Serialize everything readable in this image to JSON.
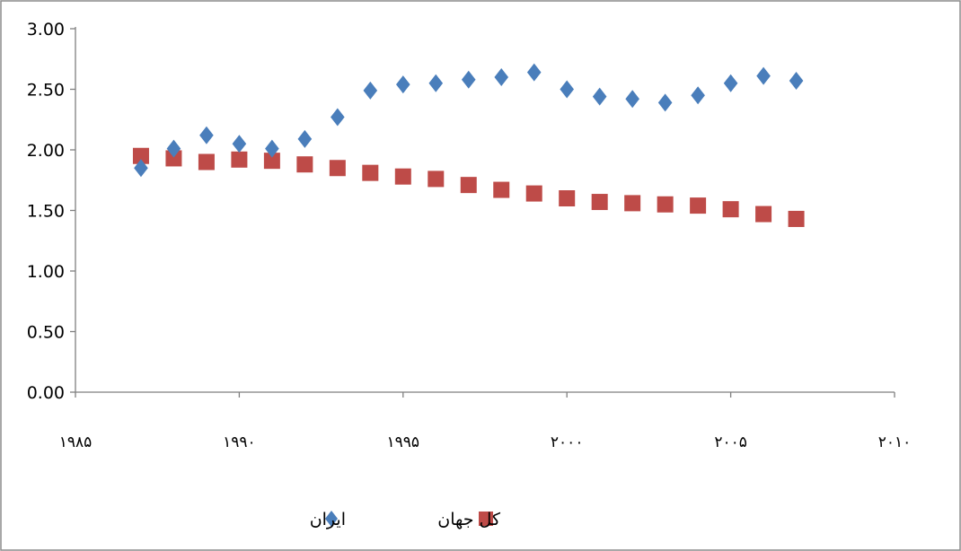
{
  "chart_data": {
    "type": "scatter",
    "title": "",
    "xlabel": "",
    "ylabel": "",
    "xlim": [
      1985,
      2010
    ],
    "ylim": [
      0,
      3
    ],
    "x_ticks": [
      1985,
      1990,
      1995,
      2000,
      2005,
      2010
    ],
    "x_tick_labels": [
      "۱۹۸۵",
      "۱۹۹۰",
      "۱۹۹۵",
      "۲۰۰۰",
      "۲۰۰۵",
      "۲۰۱۰"
    ],
    "y_ticks": [
      0,
      0.5,
      1,
      1.5,
      2,
      2.5,
      3
    ],
    "y_tick_labels": [
      "0.00",
      "0.50",
      "1.00",
      "1.50",
      "2.00",
      "2.50",
      "3.00"
    ],
    "grid": false,
    "legend_position": "bottom",
    "series": [
      {
        "name": "ایران",
        "marker": "diamond",
        "color": "#4a7ebb",
        "points": [
          [
            1987,
            1.85
          ],
          [
            1988,
            2.01
          ],
          [
            1989,
            2.12
          ],
          [
            1990,
            2.05
          ],
          [
            1991,
            2.01
          ],
          [
            1992,
            2.09
          ],
          [
            1993,
            2.27
          ],
          [
            1994,
            2.49
          ],
          [
            1995,
            2.54
          ],
          [
            1996,
            2.55
          ],
          [
            1997,
            2.58
          ],
          [
            1998,
            2.6
          ],
          [
            1999,
            2.64
          ],
          [
            2000,
            2.5
          ],
          [
            2001,
            2.44
          ],
          [
            2002,
            2.42
          ],
          [
            2003,
            2.39
          ],
          [
            2004,
            2.45
          ],
          [
            2005,
            2.55
          ],
          [
            2006,
            2.61
          ],
          [
            2007,
            2.57
          ]
        ]
      },
      {
        "name": "کل جهان",
        "marker": "square",
        "color": "#be4b48",
        "points": [
          [
            1987,
            1.95
          ],
          [
            1988,
            1.93
          ],
          [
            1989,
            1.9
          ],
          [
            1990,
            1.92
          ],
          [
            1991,
            1.91
          ],
          [
            1992,
            1.88
          ],
          [
            1993,
            1.85
          ],
          [
            1994,
            1.81
          ],
          [
            1995,
            1.78
          ],
          [
            1996,
            1.76
          ],
          [
            1997,
            1.71
          ],
          [
            1998,
            1.67
          ],
          [
            1999,
            1.64
          ],
          [
            2000,
            1.6
          ],
          [
            2001,
            1.57
          ],
          [
            2002,
            1.56
          ],
          [
            2003,
            1.55
          ],
          [
            2004,
            1.54
          ],
          [
            2005,
            1.51
          ],
          [
            2006,
            1.47
          ],
          [
            2007,
            1.43
          ]
        ]
      }
    ]
  }
}
